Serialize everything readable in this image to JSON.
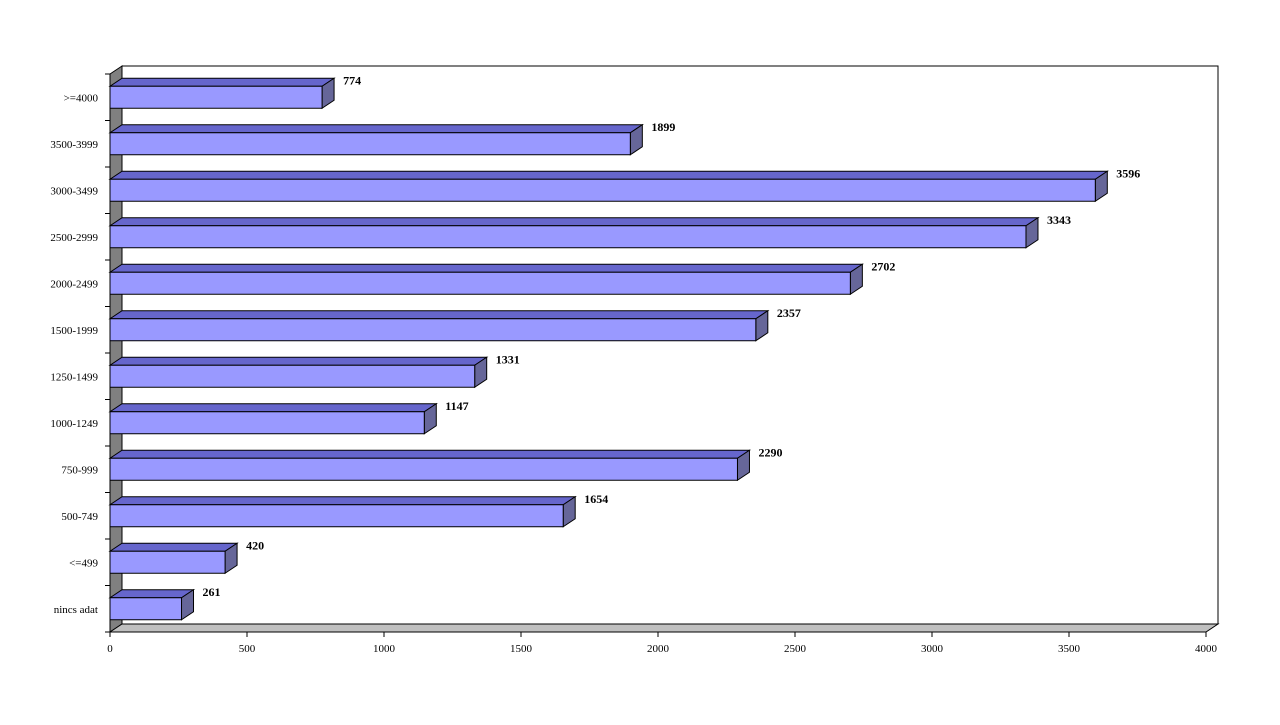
{
  "chart_data": {
    "type": "bar",
    "orientation": "horizontal",
    "three_d": true,
    "title": "",
    "xlabel": "",
    "ylabel": "",
    "categories": [
      "nincs adat",
      "<=499",
      "500-749",
      "750-999",
      "1000-1249",
      "1250-1499",
      "1500-1999",
      "2000-2499",
      "2500-2999",
      "3000-3499",
      "3500-3999",
      ">=4000"
    ],
    "values": [
      261,
      420,
      1654,
      2290,
      1147,
      1331,
      2357,
      2702,
      3343,
      3596,
      1899,
      774
    ],
    "data_labels": [
      "261",
      "420",
      "1654",
      "2290",
      "1147",
      "1331",
      "2357",
      "2702",
      "3343",
      "3596",
      "1899",
      "774"
    ],
    "xlim": [
      0,
      4000
    ],
    "xticks": [
      0,
      500,
      1000,
      1500,
      2000,
      2500,
      3000,
      3500,
      4000
    ],
    "xtick_labels": [
      "0",
      "500",
      "1000",
      "1500",
      "2000",
      "2500",
      "3000",
      "3500",
      "4000"
    ],
    "grid": false,
    "legend": "none",
    "colors": {
      "bar_front": "#9999ff",
      "bar_top": "#6666cc",
      "bar_side": "#666699",
      "wall": "#808080",
      "floor": "#c0c0c0",
      "outline": "#000000"
    }
  }
}
